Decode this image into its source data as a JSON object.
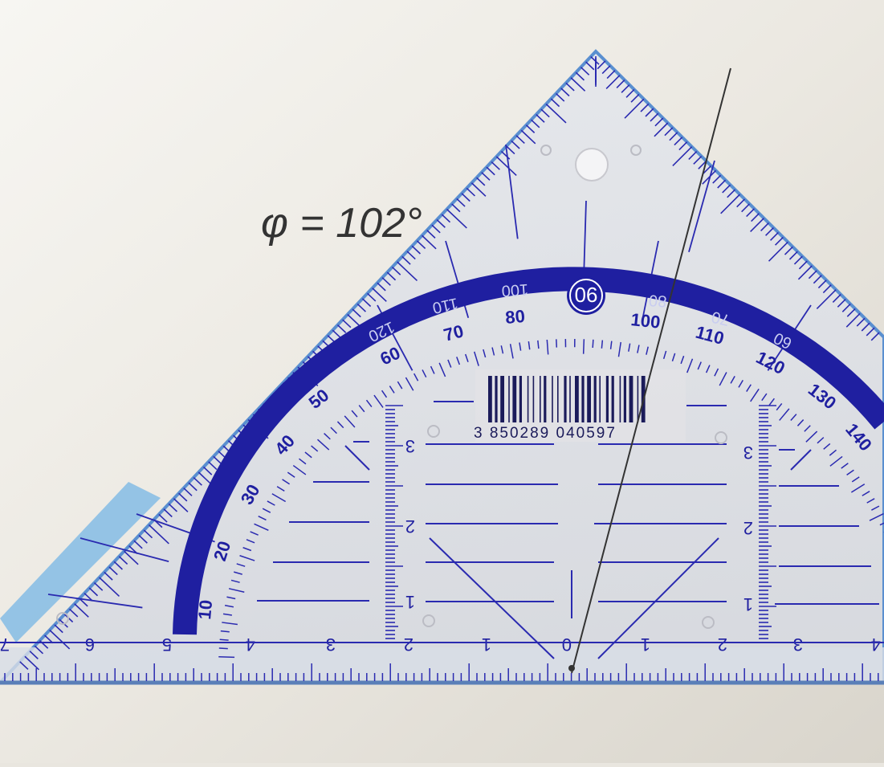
{
  "handwritten_annotation": "φ = 102°",
  "protractor_arc": {
    "outer_labels": [
      "10",
      "20",
      "30",
      "40",
      "50",
      "60",
      "70",
      "80",
      "90",
      "100",
      "110",
      "120",
      "130",
      "140"
    ],
    "inner_labels": [
      "120",
      "110",
      "100",
      "90",
      "80",
      "70",
      "60"
    ],
    "center_label": "90"
  },
  "ruler_scale": {
    "labels": [
      "7",
      "6",
      "5",
      "4",
      "3",
      "2",
      "1",
      "0",
      "1",
      "2",
      "3",
      "4"
    ]
  },
  "vertical_scale_labels": [
    "3",
    "2",
    "1"
  ],
  "barcode": {
    "number": "3 850289 040597"
  },
  "colors": {
    "paper": "#ebe8e1",
    "plastic": "#dfe3ea",
    "ink_blue": "#1f1fa0",
    "edge_blue": "#4f8fd6",
    "pencil": "#333333",
    "barcode": "#1b1b5a"
  }
}
